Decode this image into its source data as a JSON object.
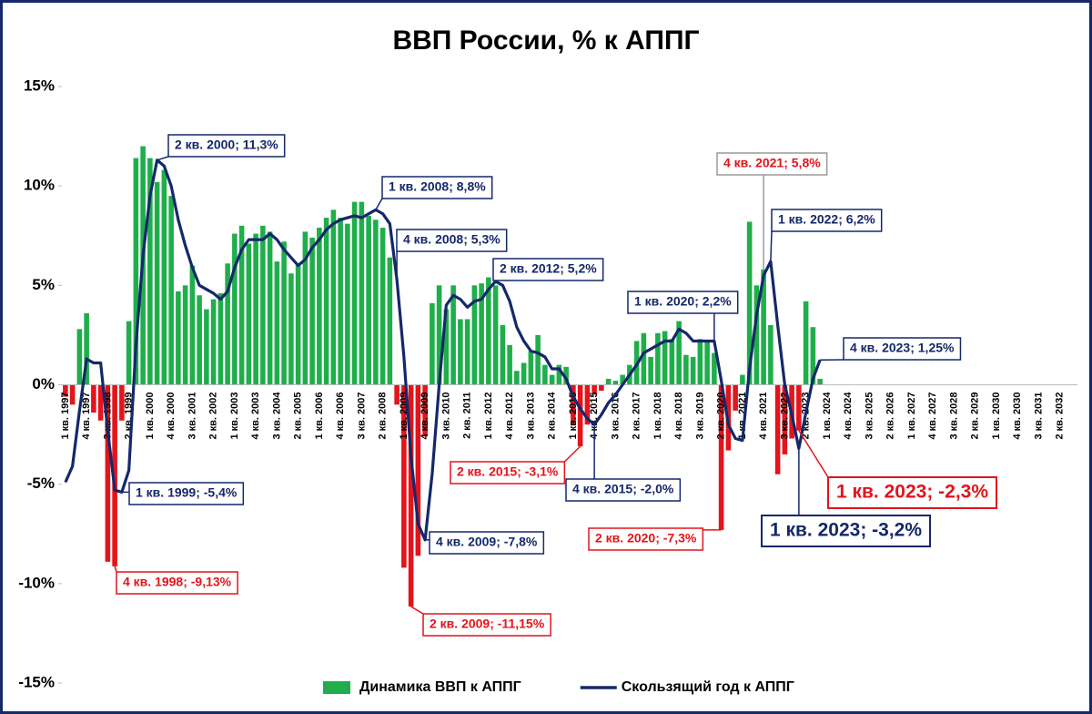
{
  "chart_data": {
    "type": "bar_line",
    "title": "ВВП России, % к АППГ",
    "categories": [
      "1 кв. 1997",
      null,
      null,
      "4 кв. 1997",
      null,
      null,
      "3 кв. 1998",
      null,
      null,
      "2 кв. 1999",
      null,
      null,
      "1 кв. 2000",
      null,
      null,
      "4 кв. 2000",
      null,
      null,
      "3 кв. 2001",
      null,
      null,
      "2 кв. 2002",
      null,
      null,
      "1 кв. 2003",
      null,
      null,
      "4 кв. 2003",
      null,
      null,
      "3 кв. 2004",
      null,
      null,
      "2 кв. 2005",
      null,
      null,
      "1 кв. 2006",
      null,
      null,
      "4 кв. 2006",
      null,
      null,
      "3 кв. 2007",
      null,
      null,
      "2 кв. 2008",
      null,
      null,
      "1 кв. 2009",
      null,
      null,
      "4 кв. 2009",
      null,
      null,
      "3 кв. 2010",
      null,
      null,
      "2 кв. 2011",
      null,
      null,
      "1 кв. 2012",
      null,
      null,
      "4 кв. 2012",
      null,
      null,
      "3 кв. 2013",
      null,
      null,
      "2 кв. 2014",
      null,
      null,
      "1 кв. 2015",
      null,
      null,
      "4 кв. 2015",
      null,
      null,
      "3 кв. 2016",
      null,
      null,
      "2 кв. 2017",
      null,
      null,
      "1 кв. 2018",
      null,
      null,
      "4 кв. 2018",
      null,
      null,
      "3 кв. 2019",
      null,
      null,
      "2 кв. 2020",
      null,
      null,
      "1 кв. 2021",
      null,
      null,
      "4 кв. 2021",
      null,
      null,
      "3 кв. 2022",
      null,
      null,
      "2 кв. 2023",
      null,
      null,
      "1 кв. 2024",
      null,
      null,
      "4 кв. 2024",
      null,
      null,
      "3 кв. 2025",
      null,
      null,
      "2 кв. 2026",
      null,
      null,
      "1 кв. 2027",
      null,
      null,
      "4 кв. 2027",
      null,
      null,
      "3 кв. 2028",
      null,
      null,
      "2 кв. 2029",
      null,
      null,
      "1 кв. 2030",
      null,
      null,
      "4 кв. 2030",
      null,
      null,
      "3 кв. 2031",
      null,
      null,
      "2 кв. 2032",
      null,
      null
    ],
    "series": [
      {
        "name": "Динамика ВВП к АППГ",
        "type": "bar",
        "color": "#1fae4b",
        "negative_color": "#e3141b",
        "values": [
          -0.6,
          -1.0,
          2.8,
          3.6,
          -1.4,
          -1.8,
          -8.9,
          -9.13,
          -1.8,
          3.2,
          11.4,
          12.0,
          11.4,
          10.2,
          10.8,
          9.5,
          4.7,
          5.0,
          6.0,
          4.5,
          3.8,
          4.3,
          4.6,
          6.1,
          7.6,
          8.0,
          7.1,
          7.6,
          8.0,
          7.7,
          6.2,
          7.2,
          5.6,
          6.1,
          7.7,
          7.4,
          7.9,
          8.4,
          8.8,
          8.4,
          8.1,
          9.2,
          9.2,
          8.5,
          8.3,
          7.9,
          6.4,
          -1.0,
          -9.2,
          -11.15,
          -8.6,
          -2.6,
          4.1,
          5.0,
          3.8,
          5.0,
          3.3,
          3.3,
          5.0,
          5.1,
          5.4,
          5.0,
          3.0,
          2.0,
          0.7,
          1.1,
          1.7,
          2.5,
          1.0,
          0.5,
          1.0,
          0.9,
          -2.0,
          -3.1,
          -2.0,
          -0.5,
          -0.3,
          0.3,
          0.2,
          0.5,
          1.0,
          2.2,
          2.6,
          1.4,
          2.6,
          2.7,
          2.3,
          3.2,
          1.5,
          1.4,
          2.3,
          2.2,
          1.6,
          -7.3,
          -3.3,
          -1.3,
          0.5,
          8.2,
          5.0,
          5.8,
          3.0,
          -4.5,
          -3.5,
          -2.7,
          -2.3,
          4.2,
          2.9,
          0.3,
          null,
          null,
          null,
          null,
          null,
          null,
          null,
          null,
          null,
          null,
          null,
          null,
          null,
          null,
          null,
          null,
          null,
          null,
          null,
          null,
          null,
          null,
          null,
          null,
          null,
          null,
          null,
          null,
          null,
          null,
          null,
          null,
          null,
          null,
          null,
          null
        ],
        "value_labels": [
          null,
          null,
          null,
          null,
          null,
          null,
          null,
          "4 кв. 1998; -9,13%",
          null,
          null,
          null,
          null,
          null,
          null,
          null,
          null,
          null,
          null,
          null,
          null,
          null,
          null,
          null,
          null,
          null,
          null,
          null,
          null,
          null,
          null,
          null,
          null,
          null,
          null,
          null,
          null,
          null,
          null,
          null,
          null,
          null,
          null,
          null,
          null,
          null,
          null,
          null,
          null,
          null,
          "2 кв. 2009; -11,15%",
          null,
          null,
          null,
          null,
          null,
          null,
          null,
          null,
          null,
          null,
          null,
          null,
          null,
          null,
          null,
          null,
          null,
          null,
          null,
          null,
          null,
          null,
          null,
          "2 кв. 2015; -3,1%",
          null,
          null,
          null,
          null,
          null,
          null,
          null,
          null,
          null,
          null,
          null,
          null,
          null,
          null,
          null,
          null,
          null,
          null,
          null,
          "2 кв. 2020; -7,3%",
          null,
          null,
          null,
          null,
          null,
          "4 кв. 2021; 5,8%",
          null,
          null,
          null,
          null,
          "1 кв. 2023; -2,3%",
          null,
          null,
          null,
          null,
          null,
          null,
          null,
          null,
          null,
          null,
          null,
          null,
          null,
          null,
          null,
          null,
          null,
          null,
          null,
          null,
          null,
          null,
          null,
          null,
          null,
          null,
          null,
          null,
          null,
          null,
          null,
          null,
          null,
          null,
          null,
          null,
          null,
          null,
          null
        ]
      },
      {
        "name": "Скользящий год к АППГ",
        "type": "line",
        "color": "#14286a",
        "values": [
          -4.9,
          -4.1,
          -1.3,
          1.3,
          1.1,
          1.1,
          -2.3,
          -5.3,
          -5.4,
          -4.3,
          2.0,
          6.5,
          9.5,
          11.3,
          11.0,
          10.0,
          8.3,
          7.0,
          5.9,
          5.0,
          4.8,
          4.6,
          4.3,
          4.7,
          5.9,
          6.8,
          7.3,
          7.3,
          7.3,
          7.6,
          7.3,
          6.8,
          6.4,
          6.0,
          6.3,
          6.9,
          7.3,
          7.8,
          8.1,
          8.3,
          8.4,
          8.5,
          8.4,
          8.6,
          8.8,
          8.6,
          8.1,
          5.3,
          1.4,
          -3.6,
          -7.0,
          -7.8,
          -4.5,
          0.0,
          4.0,
          4.5,
          4.3,
          3.9,
          4.2,
          4.3,
          4.8,
          5.2,
          5.0,
          4.2,
          2.9,
          2.2,
          1.7,
          1.6,
          1.4,
          0.8,
          0.8,
          0.3,
          -0.6,
          -1.2,
          -1.7,
          -2.0,
          -1.5,
          -0.9,
          -0.5,
          0.0,
          0.5,
          1.0,
          1.6,
          1.8,
          2.0,
          2.2,
          2.2,
          2.8,
          2.6,
          2.2,
          2.2,
          2.2,
          2.2,
          0.2,
          -2.0,
          -2.7,
          -2.8,
          0.8,
          3.5,
          5.5,
          6.2,
          3.0,
          0.0,
          -1.5,
          -3.2,
          -1.4,
          0.3,
          1.25,
          null,
          null,
          null,
          null,
          null,
          null,
          null,
          null,
          null,
          null,
          null,
          null,
          null,
          null,
          null,
          null,
          null,
          null,
          null,
          null,
          null,
          null,
          null,
          null,
          null,
          null,
          null,
          null,
          null,
          null,
          null,
          null,
          null,
          null,
          null,
          null
        ],
        "value_labels": [
          null,
          null,
          null,
          null,
          null,
          null,
          null,
          null,
          "1 кв. 1999; -5,4%",
          null,
          null,
          null,
          null,
          "2 кв. 2000; 11,3%",
          null,
          null,
          null,
          null,
          null,
          null,
          null,
          null,
          null,
          null,
          null,
          null,
          null,
          null,
          null,
          null,
          null,
          null,
          null,
          null,
          null,
          null,
          null,
          null,
          null,
          null,
          null,
          null,
          null,
          null,
          "1 кв. 2008; 8,8%",
          null,
          null,
          "4 кв. 2008; 5,3%",
          null,
          null,
          null,
          "4 кв. 2009; -7,8%",
          null,
          null,
          null,
          null,
          null,
          null,
          null,
          null,
          null,
          "2 кв. 2012; 5,2%",
          null,
          null,
          null,
          null,
          null,
          null,
          null,
          null,
          null,
          null,
          null,
          null,
          null,
          "4 кв. 2015; -2,0%",
          null,
          null,
          null,
          null,
          null,
          null,
          null,
          null,
          null,
          null,
          null,
          null,
          null,
          null,
          null,
          null,
          "1 кв. 2020; 2,2%",
          null,
          null,
          null,
          null,
          null,
          null,
          null,
          "1 кв. 2022; 6,2%",
          null,
          null,
          null,
          "1 кв. 2023; -3,2%",
          null,
          null,
          "4 кв. 2023; 1,25%",
          null,
          null,
          null,
          null,
          null,
          null,
          null,
          null,
          null,
          null,
          null,
          null,
          null,
          null,
          null,
          null,
          null,
          null,
          null,
          null,
          null,
          null,
          null,
          null,
          null,
          null,
          null,
          null,
          null,
          null,
          null,
          null,
          null,
          null,
          null,
          null
        ]
      }
    ],
    "ylim": [
      -15,
      15
    ],
    "yticks": [
      {
        "value": -15,
        "label": "-15%"
      },
      {
        "value": -10,
        "label": "-10%"
      },
      {
        "value": -5,
        "label": "-5%"
      },
      {
        "value": 0,
        "label": "0%"
      },
      {
        "value": 5,
        "label": "5%"
      },
      {
        "value": 10,
        "label": "10%"
      },
      {
        "value": 15,
        "label": "15%"
      }
    ],
    "grid": false,
    "legend": "bottom"
  }
}
